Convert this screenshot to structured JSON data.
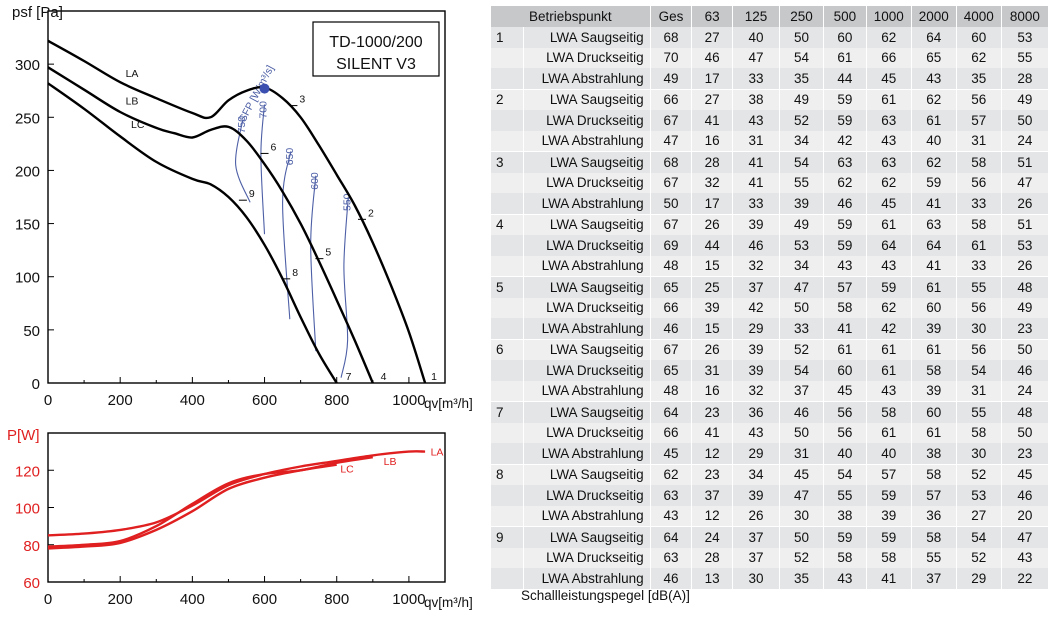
{
  "chart_data": [
    {
      "type": "line",
      "title": "TD-1000/200\nSILENT V3",
      "ylabel": "psf [Pa]",
      "xlabel": "qv[m³/h]",
      "xlim": [
        0,
        1100
      ],
      "ylim": [
        0,
        350
      ],
      "xticks": [
        0,
        200,
        400,
        600,
        800,
        1000
      ],
      "yticks": [
        0,
        50,
        100,
        150,
        200,
        250,
        300
      ],
      "series": [
        {
          "name": "LA",
          "color": "#000000",
          "x": [
            0,
            100,
            200,
            300,
            400,
            450,
            500,
            550,
            600,
            650,
            700,
            750,
            800,
            850,
            900,
            950,
            1000,
            1045
          ],
          "y": [
            322,
            303,
            283,
            268,
            254,
            250,
            266,
            275,
            278,
            268,
            250,
            224,
            196,
            167,
            132,
            92,
            48,
            0
          ]
        },
        {
          "name": "LB",
          "color": "#000000",
          "x": [
            0,
            100,
            200,
            300,
            350,
            400,
            450,
            500,
            550,
            600,
            650,
            700,
            750,
            800,
            850,
            900
          ],
          "y": [
            297,
            276,
            255,
            240,
            235,
            231,
            238,
            241,
            228,
            206,
            180,
            150,
            115,
            78,
            40,
            0
          ]
        },
        {
          "name": "LC",
          "color": "#000000",
          "x": [
            0,
            100,
            200,
            300,
            400,
            450,
            500,
            550,
            600,
            650,
            700,
            750,
            800
          ],
          "y": [
            282,
            258,
            232,
            208,
            192,
            187,
            175,
            156,
            130,
            98,
            62,
            28,
            0
          ]
        }
      ],
      "sfp_lines": [
        {
          "label": "750",
          "x": [
            540,
            520,
            560
          ],
          "y": [
            248,
            205,
            170
          ]
        },
        {
          "label": "700",
          "x": [
            600,
            590,
            600
          ],
          "y": [
            262,
            215,
            140
          ]
        },
        {
          "label": "650",
          "x": [
            673,
            650,
            670
          ],
          "y": [
            218,
            170,
            60
          ]
        },
        {
          "label": "600",
          "x": [
            742,
            728,
            742
          ],
          "y": [
            195,
            130,
            30
          ]
        },
        {
          "label": "550",
          "x": [
            832,
            820,
            830,
            812
          ],
          "y": [
            175,
            110,
            40,
            5
          ]
        }
      ],
      "sfp_axis_label": "SFP [W/m³/s]",
      "sfp_color": "#4d5fa6",
      "highlight_point": {
        "x": 600,
        "y": 277,
        "color": "#3a4fb0"
      },
      "curve_labels": [
        {
          "text": "LA",
          "x": 215,
          "y": 288
        },
        {
          "text": "LB",
          "x": 215,
          "y": 262
        },
        {
          "text": "LC",
          "x": 230,
          "y": 240
        }
      ],
      "operating_points": [
        {
          "label": "1",
          "x": 1045,
          "y": 0
        },
        {
          "label": "2",
          "x": 870,
          "y": 154
        },
        {
          "label": "3",
          "x": 680,
          "y": 261
        },
        {
          "label": "4",
          "x": 905,
          "y": 0
        },
        {
          "label": "5",
          "x": 752,
          "y": 117
        },
        {
          "label": "6",
          "x": 600,
          "y": 216
        },
        {
          "label": "7",
          "x": 808,
          "y": 0
        },
        {
          "label": "8",
          "x": 660,
          "y": 98
        },
        {
          "label": "9",
          "x": 540,
          "y": 172
        }
      ]
    },
    {
      "type": "line",
      "ylabel": "P[W]",
      "xlabel": "qv[m³/h]",
      "xlim": [
        0,
        1100
      ],
      "ylim": [
        60,
        140
      ],
      "xticks": [
        0,
        200,
        400,
        600,
        800,
        1000
      ],
      "yticks": [
        60,
        80,
        100,
        120
      ],
      "series": [
        {
          "name": "LA",
          "color": "#e02020",
          "x": [
            0,
            100,
            200,
            300,
            400,
            500,
            600,
            700,
            800,
            900,
            1000,
            1045
          ],
          "y": [
            85,
            86,
            88,
            92,
            101,
            112,
            118,
            122,
            125,
            128,
            130,
            130
          ]
        },
        {
          "name": "LB",
          "color": "#e02020",
          "x": [
            0,
            100,
            200,
            300,
            400,
            500,
            600,
            700,
            800,
            900
          ],
          "y": [
            79,
            80,
            82,
            90,
            102,
            113,
            118,
            120,
            124,
            127
          ]
        },
        {
          "name": "LC",
          "color": "#e02020",
          "x": [
            0,
            100,
            200,
            300,
            400,
            500,
            600,
            700,
            800
          ],
          "y": [
            78,
            79,
            81,
            88,
            98,
            110,
            116,
            120,
            123
          ]
        }
      ],
      "curve_labels": [
        {
          "text": "LA",
          "x": 1060,
          "y": 130
        },
        {
          "text": "LB",
          "x": 930,
          "y": 125
        },
        {
          "text": "LC",
          "x": 810,
          "y": 121
        }
      ]
    }
  ],
  "table": {
    "headers": [
      "Betriebspunkt",
      "Ges",
      "63",
      "125",
      "250",
      "500",
      "1000",
      "2000",
      "4000",
      "8000"
    ],
    "groups": [
      {
        "point": "1",
        "rows": [
          {
            "label": "LWA Saugseitig",
            "values": [
              "68",
              "27",
              "40",
              "50",
              "60",
              "62",
              "64",
              "60",
              "53"
            ]
          },
          {
            "label": "LWA Druckseitig",
            "values": [
              "70",
              "46",
              "47",
              "54",
              "61",
              "66",
              "65",
              "62",
              "55"
            ]
          },
          {
            "label": "LWA Abstrahlung",
            "values": [
              "49",
              "17",
              "33",
              "35",
              "44",
              "45",
              "43",
              "35",
              "28"
            ]
          }
        ]
      },
      {
        "point": "2",
        "rows": [
          {
            "label": "LWA Saugseitig",
            "values": [
              "66",
              "27",
              "38",
              "49",
              "59",
              "61",
              "62",
              "56",
              "49"
            ]
          },
          {
            "label": "LWA Druckseitig",
            "values": [
              "67",
              "41",
              "43",
              "52",
              "59",
              "63",
              "61",
              "57",
              "50"
            ]
          },
          {
            "label": "LWA Abstrahlung",
            "values": [
              "47",
              "16",
              "31",
              "34",
              "42",
              "43",
              "40",
              "31",
              "24"
            ]
          }
        ]
      },
      {
        "point": "3",
        "rows": [
          {
            "label": "LWA Saugseitig",
            "values": [
              "68",
              "28",
              "41",
              "54",
              "63",
              "63",
              "62",
              "58",
              "51"
            ]
          },
          {
            "label": "LWA Druckseitig",
            "values": [
              "67",
              "32",
              "41",
              "55",
              "62",
              "62",
              "59",
              "56",
              "47"
            ]
          },
          {
            "label": "LWA Abstrahlung",
            "values": [
              "50",
              "17",
              "33",
              "39",
              "46",
              "45",
              "41",
              "33",
              "26"
            ]
          }
        ]
      },
      {
        "point": "4",
        "rows": [
          {
            "label": "LWA Saugseitig",
            "values": [
              "67",
              "26",
              "39",
              "49",
              "59",
              "61",
              "63",
              "58",
              "51"
            ]
          },
          {
            "label": "LWA Druckseitig",
            "values": [
              "69",
              "44",
              "46",
              "53",
              "59",
              "64",
              "64",
              "61",
              "53"
            ]
          },
          {
            "label": "LWA Abstrahlung",
            "values": [
              "48",
              "15",
              "32",
              "34",
              "43",
              "43",
              "41",
              "33",
              "26"
            ]
          }
        ]
      },
      {
        "point": "5",
        "rows": [
          {
            "label": "LWA Saugseitig",
            "values": [
              "65",
              "25",
              "37",
              "47",
              "57",
              "59",
              "61",
              "55",
              "48"
            ]
          },
          {
            "label": "LWA Druckseitig",
            "values": [
              "66",
              "39",
              "42",
              "50",
              "58",
              "62",
              "60",
              "56",
              "49"
            ]
          },
          {
            "label": "LWA Abstrahlung",
            "values": [
              "46",
              "15",
              "29",
              "33",
              "41",
              "42",
              "39",
              "30",
              "23"
            ]
          }
        ]
      },
      {
        "point": "6",
        "rows": [
          {
            "label": "LWA Saugseitig",
            "values": [
              "67",
              "26",
              "39",
              "52",
              "61",
              "61",
              "61",
              "56",
              "50"
            ]
          },
          {
            "label": "LWA Druckseitig",
            "values": [
              "65",
              "31",
              "39",
              "54",
              "60",
              "61",
              "58",
              "54",
              "46"
            ]
          },
          {
            "label": "LWA Abstrahlung",
            "values": [
              "48",
              "16",
              "32",
              "37",
              "45",
              "43",
              "39",
              "31",
              "24"
            ]
          }
        ]
      },
      {
        "point": "7",
        "rows": [
          {
            "label": "LWA Saugseitig",
            "values": [
              "64",
              "23",
              "36",
              "46",
              "56",
              "58",
              "60",
              "55",
              "48"
            ]
          },
          {
            "label": "LWA Druckseitig",
            "values": [
              "66",
              "41",
              "43",
              "50",
              "56",
              "61",
              "61",
              "58",
              "50"
            ]
          },
          {
            "label": "LWA Abstrahlung",
            "values": [
              "45",
              "12",
              "29",
              "31",
              "40",
              "40",
              "38",
              "30",
              "23"
            ]
          }
        ]
      },
      {
        "point": "8",
        "rows": [
          {
            "label": "LWA Saugseitig",
            "values": [
              "62",
              "23",
              "34",
              "45",
              "54",
              "57",
              "58",
              "52",
              "45"
            ]
          },
          {
            "label": "LWA Druckseitig",
            "values": [
              "63",
              "37",
              "39",
              "47",
              "55",
              "59",
              "57",
              "53",
              "46"
            ]
          },
          {
            "label": "LWA Abstrahlung",
            "values": [
              "43",
              "12",
              "26",
              "30",
              "38",
              "39",
              "36",
              "27",
              "20"
            ]
          }
        ]
      },
      {
        "point": "9",
        "rows": [
          {
            "label": "LWA Saugseitig",
            "values": [
              "64",
              "24",
              "37",
              "50",
              "59",
              "59",
              "58",
              "54",
              "47"
            ]
          },
          {
            "label": "LWA Druckseitig",
            "values": [
              "63",
              "28",
              "37",
              "52",
              "58",
              "58",
              "55",
              "52",
              "43"
            ]
          },
          {
            "label": "LWA Abstrahlung",
            "values": [
              "46",
              "13",
              "30",
              "35",
              "43",
              "41",
              "37",
              "29",
              "22"
            ]
          }
        ]
      }
    ],
    "caption": "Schallleistungspegel [dB(A)]"
  }
}
